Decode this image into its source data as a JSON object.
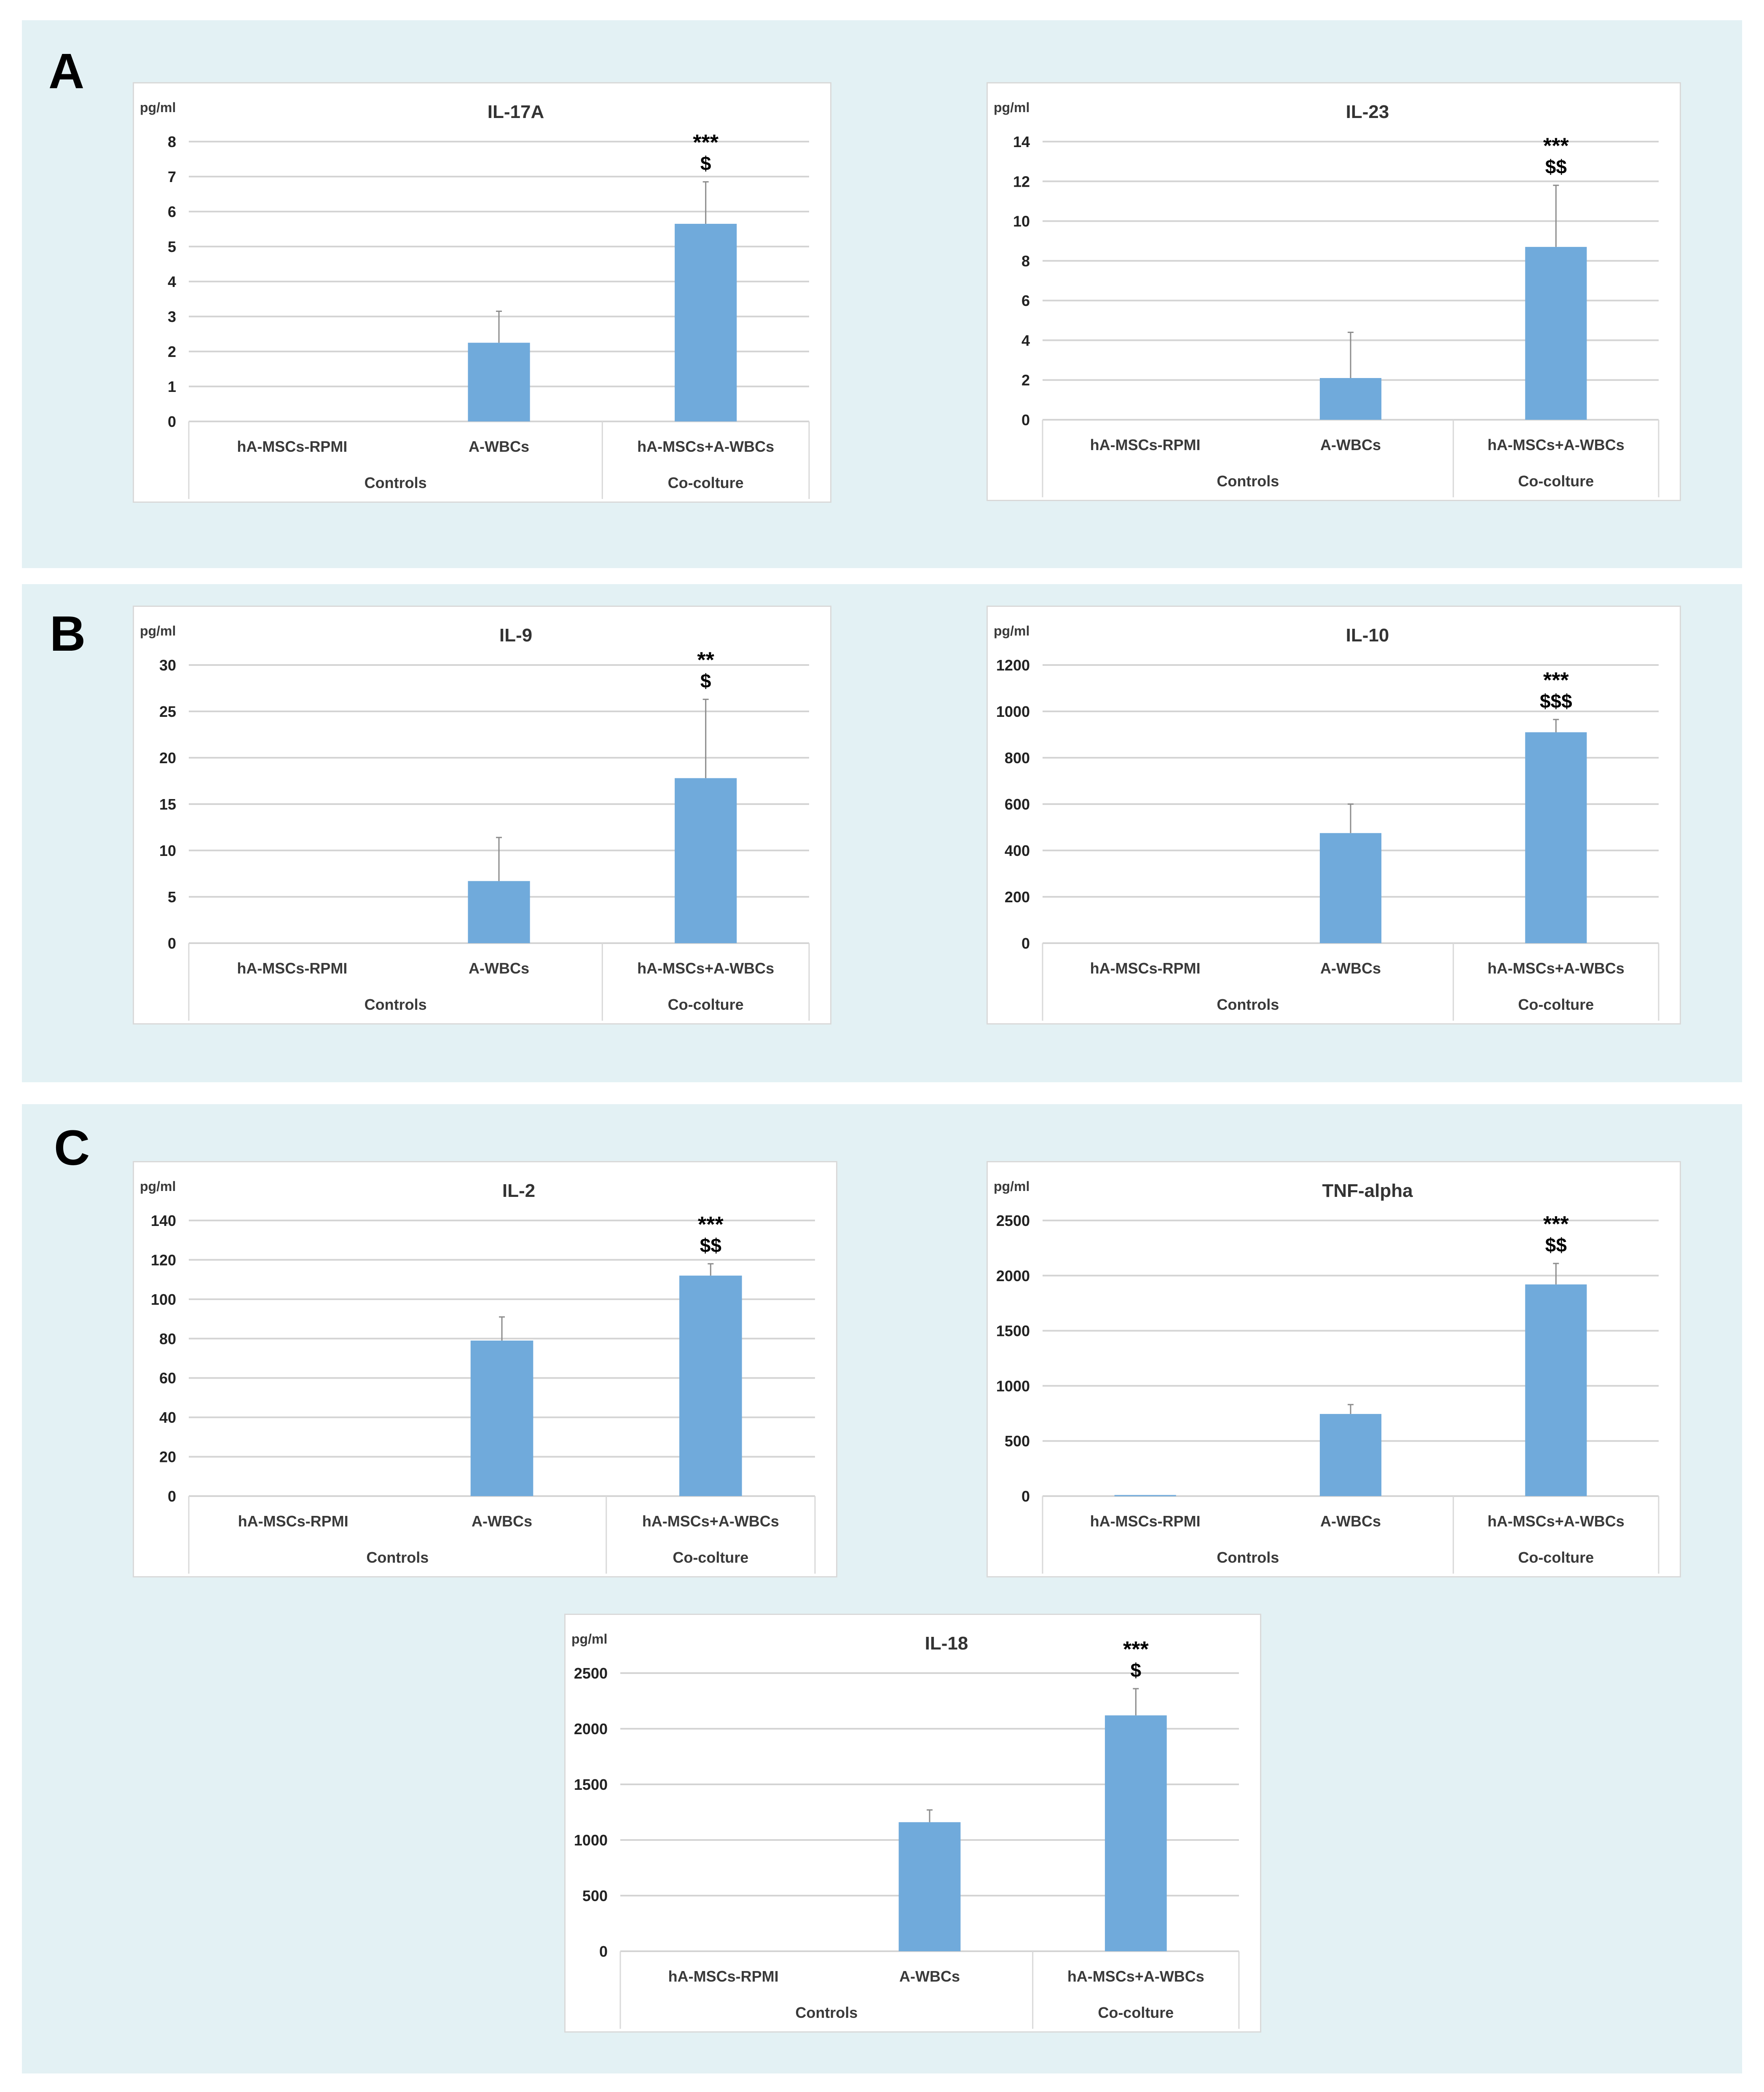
{
  "panels": [
    "A",
    "B",
    "C"
  ],
  "colors": {
    "bar": "#70aadb",
    "panel_background": "#e3f1f4",
    "grid": "#d9d9d9"
  },
  "chart_data": [
    {
      "type": "bar",
      "panel": "A",
      "title": "IL-17A",
      "ylabel": "pg/ml",
      "categories": [
        "hA-MSCs-RPMI",
        "A-WBCs",
        "hA-MSCs+A-WBCs"
      ],
      "groups": [
        "Controls",
        "Co-colture"
      ],
      "values": [
        0,
        2.25,
        5.65
      ],
      "errors": [
        0,
        0.9,
        1.2
      ],
      "significance": [
        "",
        "",
        "***\n$"
      ],
      "ylim": [
        0,
        8
      ],
      "yticks": [
        0,
        1,
        2,
        3,
        4,
        5,
        6,
        7,
        8
      ]
    },
    {
      "type": "bar",
      "panel": "A",
      "title": "IL-23",
      "ylabel": "pg/ml",
      "categories": [
        "hA-MSCs-RPMI",
        "A-WBCs",
        "hA-MSCs+A-WBCs"
      ],
      "groups": [
        "Controls",
        "Co-colture"
      ],
      "values": [
        0,
        2.1,
        8.7
      ],
      "errors": [
        0,
        2.3,
        3.1
      ],
      "significance": [
        "",
        "",
        "***\n$$"
      ],
      "ylim": [
        0,
        14
      ],
      "yticks": [
        0,
        2,
        4,
        6,
        8,
        10,
        12,
        14
      ]
    },
    {
      "type": "bar",
      "panel": "B",
      "title": "IL-9",
      "ylabel": "pg/ml",
      "categories": [
        "hA-MSCs-RPMI",
        "A-WBCs",
        "hA-MSCs+A-WBCs"
      ],
      "groups": [
        "Controls",
        "Co-colture"
      ],
      "values": [
        0,
        6.7,
        17.8
      ],
      "errors": [
        0,
        4.7,
        8.5
      ],
      "significance": [
        "",
        "",
        "**\n$"
      ],
      "ylim": [
        0,
        30
      ],
      "yticks": [
        0,
        5,
        10,
        15,
        20,
        25,
        30
      ]
    },
    {
      "type": "bar",
      "panel": "B",
      "title": "IL-10",
      "ylabel": "pg/ml",
      "categories": [
        "hA-MSCs-RPMI",
        "A-WBCs",
        "hA-MSCs+A-WBCs"
      ],
      "groups": [
        "Controls",
        "Co-colture"
      ],
      "values": [
        0,
        475,
        910
      ],
      "errors": [
        0,
        125,
        55
      ],
      "significance": [
        "",
        "",
        "***\n$$$"
      ],
      "ylim": [
        0,
        1200
      ],
      "yticks": [
        0,
        200,
        400,
        600,
        800,
        1000,
        1200
      ]
    },
    {
      "type": "bar",
      "panel": "C",
      "title": "IL-2",
      "ylabel": "pg/ml",
      "categories": [
        "hA-MSCs-RPMI",
        "A-WBCs",
        "hA-MSCs+A-WBCs"
      ],
      "groups": [
        "Controls",
        "Co-colture"
      ],
      "values": [
        0,
        79,
        112
      ],
      "errors": [
        0,
        12,
        6
      ],
      "significance": [
        "",
        "",
        "***\n$$"
      ],
      "ylim": [
        0,
        140
      ],
      "yticks": [
        0,
        20,
        40,
        60,
        80,
        100,
        120,
        140
      ]
    },
    {
      "type": "bar",
      "panel": "C",
      "title": "TNF-alpha",
      "ylabel": "pg/ml",
      "categories": [
        "hA-MSCs-RPMI",
        "A-WBCs",
        "hA-MSCs+A-WBCs"
      ],
      "groups": [
        "Controls",
        "Co-colture"
      ],
      "values": [
        10,
        745,
        1920
      ],
      "errors": [
        0,
        85,
        190
      ],
      "significance": [
        "",
        "",
        "***\n$$"
      ],
      "ylim": [
        0,
        2500
      ],
      "yticks": [
        0,
        500,
        1000,
        1500,
        2000,
        2500
      ]
    },
    {
      "type": "bar",
      "panel": "C",
      "title": "IL-18",
      "ylabel": "pg/ml",
      "categories": [
        "hA-MSCs-RPMI",
        "A-WBCs",
        "hA-MSCs+A-WBCs"
      ],
      "groups": [
        "Controls",
        "Co-colture"
      ],
      "values": [
        0,
        1160,
        2120
      ],
      "errors": [
        0,
        110,
        240
      ],
      "significance": [
        "",
        "",
        "***\n$"
      ],
      "ylim": [
        0,
        2500
      ],
      "yticks": [
        0,
        500,
        1000,
        1500,
        2000,
        2500
      ]
    }
  ]
}
